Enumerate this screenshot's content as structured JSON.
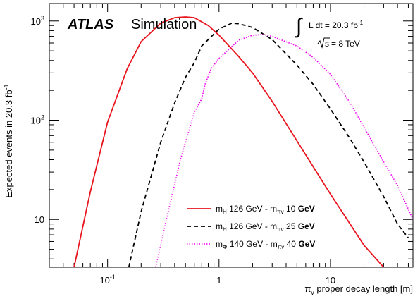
{
  "chart_data": {
    "type": "line",
    "experiment": "ATLAS",
    "experiment_note": "Simulation",
    "lumi_int_symbol": "∫",
    "lumi_text": "L dt = 20.3 fb",
    "lumi_sup": "-1",
    "energy_text": "= 8 TeV",
    "energy_symbol": "s",
    "xlabel": "π",
    "xlabel_sub": "v",
    "xlabel_rest": " proper decay length [m]",
    "ylabel": "Expected events in 20.3 fb",
    "ylabel_sup": "-1",
    "xscale": "log",
    "yscale": "log",
    "xlim": [
      0.03,
      55
    ],
    "ylim": [
      3.3,
      1500
    ],
    "x_ticks": [
      {
        "value": 0.1,
        "base": "10",
        "exp": "-1"
      },
      {
        "value": 1,
        "base": "1",
        "exp": ""
      },
      {
        "value": 10,
        "base": "10",
        "exp": ""
      }
    ],
    "y_ticks": [
      {
        "value": 10,
        "base": "10",
        "exp": ""
      },
      {
        "value": 100,
        "base": "10",
        "exp": "2"
      },
      {
        "value": 1000,
        "base": "10",
        "exp": "3"
      }
    ],
    "legend_position": "bottom-right",
    "series": [
      {
        "color": "#e8141e",
        "dash": "solid",
        "legend": {
          "m1": "m",
          "m1sub": "H",
          "t1": " 126 GeV - m",
          "m2sub": "πv",
          "t2": " 10 ",
          "t3": "GeV"
        },
        "x": [
          0.05,
          0.07,
          0.1,
          0.15,
          0.2,
          0.3,
          0.4,
          0.5,
          0.6,
          0.8,
          1,
          1.5,
          2,
          3,
          5,
          7,
          10,
          15,
          20,
          30
        ],
        "y": [
          3.3,
          19,
          96,
          330,
          620,
          950,
          1080,
          1100,
          1080,
          900,
          720,
          440,
          300,
          155,
          62,
          34,
          18,
          9,
          5.5,
          3.3
        ]
      },
      {
        "color": "#000000",
        "dash": "dashed",
        "legend": {
          "m1": "m",
          "m1sub": "H",
          "t1": " 126 GeV - m",
          "m2sub": "πv",
          "t2": " 25 ",
          "t3": "GeV"
        },
        "x": [
          0.155,
          0.2,
          0.3,
          0.4,
          0.5,
          0.6,
          0.7,
          1,
          1.3,
          1.5,
          2,
          3,
          5,
          7,
          10,
          15,
          20,
          30,
          40,
          50
        ],
        "y": [
          3.3,
          12,
          60,
          150,
          270,
          380,
          560,
          830,
          950,
          940,
          860,
          650,
          360,
          230,
          130,
          65,
          38,
          17,
          9,
          6.5
        ]
      },
      {
        "color": "#ee00ee",
        "dash": "dotted",
        "legend": {
          "m1": "m",
          "m1sub": "Φ",
          "t1": " 140 GeV - m",
          "m2sub": "πv",
          "t2": " 40 ",
          "t3": "GeV"
        },
        "x": [
          0.27,
          0.35,
          0.45,
          0.6,
          0.7,
          0.75,
          0.85,
          1,
          1.5,
          2,
          2.5,
          3,
          5,
          7,
          10,
          15,
          20,
          30,
          40,
          55
        ],
        "y": [
          3.3,
          12,
          40,
          120,
          165,
          230,
          330,
          420,
          640,
          720,
          730,
          700,
          560,
          430,
          290,
          150,
          85,
          38,
          22,
          10
        ]
      }
    ]
  }
}
